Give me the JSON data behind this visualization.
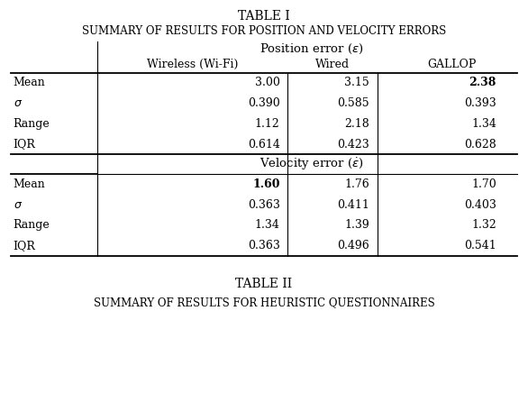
{
  "title1": "TABLE I",
  "title2": "Summary of results for position and velocity errors",
  "title3": "TABLE II",
  "title4": "Summary of results for heuristic questionnaires",
  "col_headers": [
    "",
    "Wireless (Wi-Fi)",
    "Wired",
    "GALLOP"
  ],
  "pos_section_header": "Position error ($\\epsilon$)",
  "vel_section_header": "Velocity error ($\\dot{\\epsilon}$)",
  "row_labels": [
    "Mean",
    "$\\sigma$",
    "Range",
    "IQR"
  ],
  "position_data": [
    [
      "3.00",
      "3.15",
      "2.38"
    ],
    [
      "0.390",
      "0.585",
      "0.393"
    ],
    [
      "1.12",
      "2.18",
      "1.34"
    ],
    [
      "0.614",
      "0.423",
      "0.628"
    ]
  ],
  "velocity_data": [
    [
      "1.60",
      "1.76",
      "1.70"
    ],
    [
      "0.363",
      "0.411",
      "0.403"
    ],
    [
      "1.34",
      "1.39",
      "1.32"
    ],
    [
      "0.363",
      "0.496",
      "0.541"
    ]
  ],
  "pos_bold": [
    [
      0,
      2
    ]
  ],
  "vel_bold": [
    [
      0,
      0
    ]
  ],
  "bg_color": "#ffffff",
  "text_color": "#000000",
  "font_size": 9.0,
  "title_font_size": 10.0
}
